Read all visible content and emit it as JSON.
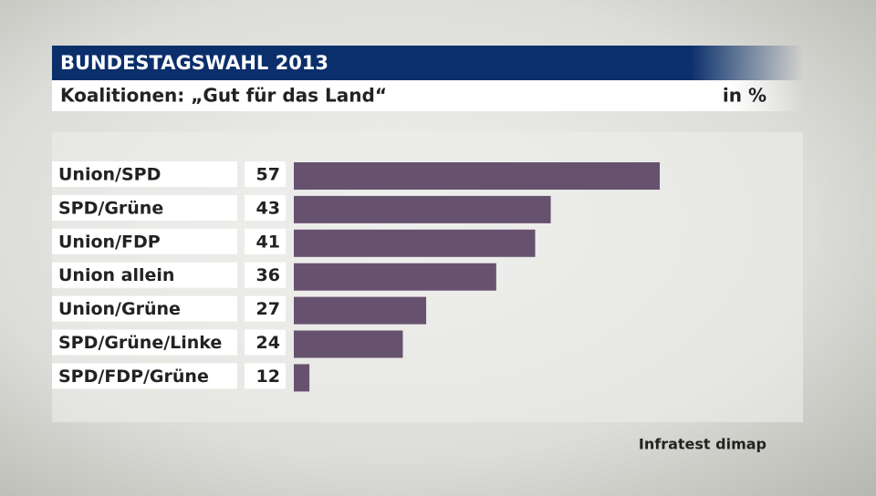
{
  "chart_data": {
    "type": "bar",
    "orientation": "horizontal",
    "title": "BUNDESTAGSWAHL 2013",
    "subtitle": "Koalitionen: „Gut für das Land“",
    "unit": "in %",
    "source": "Infratest dimap",
    "categories": [
      "Union/SPD",
      "SPD/Grüne",
      "Union/FDP",
      "Union allein",
      "Union/Grüne",
      "SPD/Grüne/Linke",
      "SPD/FDP/Grüne"
    ],
    "values": [
      57,
      43,
      41,
      36,
      27,
      24,
      12
    ],
    "color": "#66526f",
    "xlim": [
      10,
      57
    ]
  }
}
